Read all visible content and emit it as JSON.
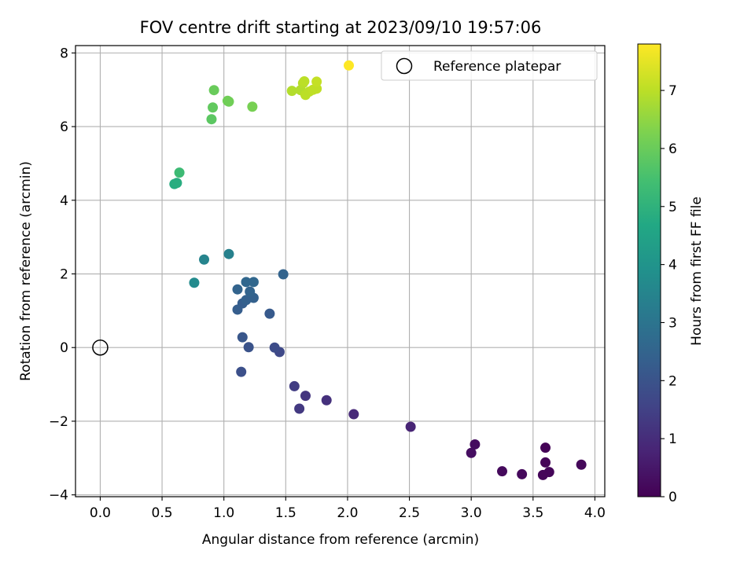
{
  "chart_data": {
    "type": "scatter",
    "title": "FOV centre drift starting at 2023/09/10 19:57:06",
    "xlabel": "Angular distance from reference (arcmin)",
    "ylabel": "Rotation from reference (arcmin)",
    "xlim": [
      -0.2,
      4.08
    ],
    "ylim": [
      -4.05,
      8.2
    ],
    "x_ticks": [
      0.0,
      0.5,
      1.0,
      1.5,
      2.0,
      2.5,
      3.0,
      3.5,
      4.0
    ],
    "x_tick_labels": [
      "0.0",
      "0.5",
      "1.0",
      "1.5",
      "2.0",
      "2.5",
      "3.0",
      "3.5",
      "4.0"
    ],
    "y_ticks": [
      -4,
      -2,
      0,
      2,
      4,
      6,
      8
    ],
    "y_tick_labels": [
      "−4",
      "−2",
      "0",
      "2",
      "4",
      "6",
      "8"
    ],
    "grid": true,
    "colormap": "viridis",
    "colorbar": {
      "label": "Hours from first FF file",
      "range": [
        0,
        7.8
      ],
      "ticks": [
        0,
        1,
        2,
        3,
        4,
        5,
        6,
        7
      ],
      "tick_labels": [
        "0",
        "1",
        "2",
        "3",
        "4",
        "5",
        "6",
        "7"
      ]
    },
    "legend": {
      "position": "top-right",
      "entries": [
        "Reference platepar"
      ]
    },
    "reference_point": {
      "name": "Reference platepar",
      "x": 0.0,
      "y": 0.0
    },
    "points": [
      {
        "x": 3.6,
        "y": -2.72,
        "h": 0.05
      },
      {
        "x": 3.6,
        "y": -3.12,
        "h": 0.1
      },
      {
        "x": 3.63,
        "y": -3.38,
        "h": 0.12
      },
      {
        "x": 3.58,
        "y": -3.46,
        "h": 0.12
      },
      {
        "x": 3.89,
        "y": -3.18,
        "h": 0.15
      },
      {
        "x": 3.41,
        "y": -3.44,
        "h": 0.18
      },
      {
        "x": 3.25,
        "y": -3.36,
        "h": 0.2
      },
      {
        "x": 3.03,
        "y": -2.63,
        "h": 0.25
      },
      {
        "x": 3.0,
        "y": -2.86,
        "h": 0.3
      },
      {
        "x": 2.51,
        "y": -2.15,
        "h": 0.8
      },
      {
        "x": 2.05,
        "y": -1.81,
        "h": 0.9
      },
      {
        "x": 1.83,
        "y": -1.43,
        "h": 1.1
      },
      {
        "x": 1.66,
        "y": -1.31,
        "h": 1.2
      },
      {
        "x": 1.61,
        "y": -1.66,
        "h": 1.3
      },
      {
        "x": 1.57,
        "y": -1.05,
        "h": 1.4
      },
      {
        "x": 1.45,
        "y": -0.12,
        "h": 1.7
      },
      {
        "x": 1.41,
        "y": 0.0,
        "h": 1.8
      },
      {
        "x": 1.14,
        "y": -0.66,
        "h": 1.9
      },
      {
        "x": 1.2,
        "y": 0.01,
        "h": 2.0
      },
      {
        "x": 1.15,
        "y": 0.28,
        "h": 2.1
      },
      {
        "x": 1.37,
        "y": 0.92,
        "h": 2.2
      },
      {
        "x": 1.11,
        "y": 1.03,
        "h": 2.3
      },
      {
        "x": 1.15,
        "y": 1.2,
        "h": 2.3
      },
      {
        "x": 1.18,
        "y": 1.29,
        "h": 2.4
      },
      {
        "x": 1.24,
        "y": 1.35,
        "h": 2.4
      },
      {
        "x": 1.21,
        "y": 1.52,
        "h": 2.5
      },
      {
        "x": 1.11,
        "y": 1.58,
        "h": 2.5
      },
      {
        "x": 1.18,
        "y": 1.78,
        "h": 2.6
      },
      {
        "x": 1.24,
        "y": 1.78,
        "h": 2.6
      },
      {
        "x": 1.48,
        "y": 1.99,
        "h": 2.5
      },
      {
        "x": 1.04,
        "y": 2.54,
        "h": 3.4
      },
      {
        "x": 0.84,
        "y": 2.39,
        "h": 3.5
      },
      {
        "x": 0.76,
        "y": 1.76,
        "h": 3.7
      },
      {
        "x": 0.6,
        "y": 4.44,
        "h": 4.8
      },
      {
        "x": 0.62,
        "y": 4.47,
        "h": 4.85
      },
      {
        "x": 0.64,
        "y": 4.75,
        "h": 5.3
      },
      {
        "x": 0.9,
        "y": 6.2,
        "h": 5.8
      },
      {
        "x": 0.91,
        "y": 6.52,
        "h": 5.9
      },
      {
        "x": 0.92,
        "y": 6.99,
        "h": 6.0
      },
      {
        "x": 1.03,
        "y": 6.7,
        "h": 6.1
      },
      {
        "x": 1.04,
        "y": 6.68,
        "h": 6.1
      },
      {
        "x": 1.23,
        "y": 6.54,
        "h": 6.2
      },
      {
        "x": 1.55,
        "y": 6.97,
        "h": 6.9
      },
      {
        "x": 1.62,
        "y": 6.99,
        "h": 6.9
      },
      {
        "x": 1.64,
        "y": 7.18,
        "h": 6.95
      },
      {
        "x": 1.65,
        "y": 7.23,
        "h": 7.0
      },
      {
        "x": 1.66,
        "y": 6.86,
        "h": 7.0
      },
      {
        "x": 1.69,
        "y": 6.95,
        "h": 7.0
      },
      {
        "x": 1.72,
        "y": 7.0,
        "h": 7.05
      },
      {
        "x": 1.75,
        "y": 7.03,
        "h": 7.05
      },
      {
        "x": 1.75,
        "y": 7.22,
        "h": 7.1
      },
      {
        "x": 2.01,
        "y": 7.66,
        "h": 7.8
      }
    ]
  }
}
